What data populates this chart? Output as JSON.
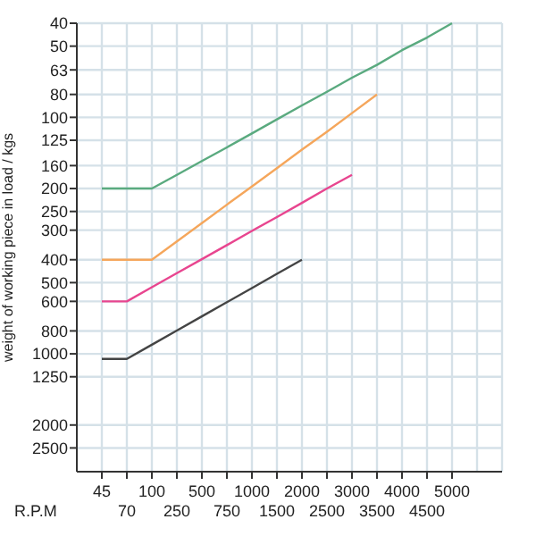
{
  "chart_data": {
    "type": "line",
    "xlabel": "R.P.M",
    "ylabel": "weight of working piece in load / kgs",
    "categories": [
      "45",
      "70",
      "100",
      "250",
      "500",
      "750",
      "1000",
      "1500",
      "2000",
      "2500",
      "3000",
      "3500",
      "4000",
      "4500",
      "5000"
    ],
    "ylim": [
      3150,
      40
    ],
    "log": "y",
    "yticks": [
      40,
      50,
      63,
      80,
      100,
      125,
      160,
      200,
      250,
      300,
      400,
      500,
      600,
      800,
      1000,
      1250,
      2000,
      2500
    ],
    "grid": true,
    "marker": "none",
    "line_style": "solid",
    "series": [
      {
        "color": "#5aaa7f",
        "values": [
          200,
          200,
          200,
          175,
          153,
          134,
          117,
          102,
          89,
          78,
          68,
          60,
          52,
          46,
          40
        ]
      },
      {
        "color": "#f5a65b",
        "values": [
          400,
          400,
          400,
          335,
          280,
          234,
          196,
          164,
          137,
          115,
          96,
          80,
          null,
          null,
          null
        ]
      },
      {
        "color": "#e8458f",
        "values": [
          600,
          600,
          523,
          456,
          398,
          347,
          302,
          264,
          230,
          200,
          175,
          null,
          null,
          null,
          null
        ]
      },
      {
        "color": "#444444",
        "values": [
          1050,
          1050,
          915,
          797,
          694,
          605,
          527,
          459,
          400,
          null,
          null,
          null,
          null,
          null,
          null
        ]
      }
    ]
  }
}
